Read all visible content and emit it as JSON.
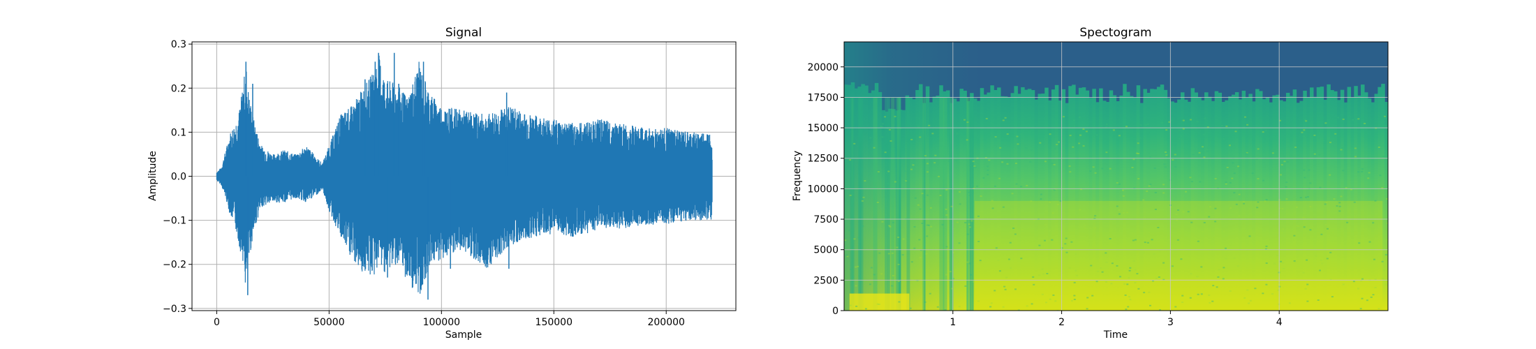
{
  "chart_data": [
    {
      "type": "line",
      "title": "Signal",
      "xlabel": "Sample",
      "ylabel": "Amplitude",
      "xlim": [
        -11000,
        231000
      ],
      "ylim": [
        -0.305,
        0.305
      ],
      "xticks": [
        0,
        50000,
        100000,
        150000,
        200000
      ],
      "xtick_labels": [
        "0",
        "50000",
        "100000",
        "150000",
        "200000"
      ],
      "yticks": [
        -0.3,
        -0.2,
        -0.1,
        0.0,
        0.1,
        0.2,
        0.3
      ],
      "ytick_labels": [
        "−0.3",
        "−0.2",
        "−0.1",
        "0.0",
        "0.1",
        "0.2",
        "0.3"
      ],
      "grid": true,
      "color": "#1f77b4",
      "num_samples": 220500,
      "envelope": {
        "x": [
          0,
          2000,
          4000,
          6000,
          8000,
          10000,
          12000,
          13000,
          14000,
          16000,
          18000,
          20000,
          25000,
          30000,
          35000,
          40000,
          45000,
          47000,
          50000,
          55000,
          60000,
          65000,
          70000,
          72000,
          75000,
          80000,
          85000,
          90000,
          95000,
          100000,
          110000,
          120000,
          130000,
          140000,
          150000,
          160000,
          170000,
          180000,
          190000,
          200000,
          210000,
          220000
        ],
        "upper": [
          0.01,
          0.02,
          0.06,
          0.1,
          0.12,
          0.15,
          0.22,
          0.26,
          0.2,
          0.14,
          0.1,
          0.07,
          0.05,
          0.06,
          0.05,
          0.07,
          0.04,
          0.03,
          0.07,
          0.14,
          0.16,
          0.2,
          0.24,
          0.28,
          0.22,
          0.21,
          0.18,
          0.26,
          0.19,
          0.16,
          0.15,
          0.14,
          0.16,
          0.14,
          0.13,
          0.12,
          0.13,
          0.12,
          0.11,
          0.11,
          0.1,
          0.1
        ],
        "lower": [
          -0.01,
          -0.02,
          -0.05,
          -0.09,
          -0.11,
          -0.16,
          -0.2,
          -0.27,
          -0.21,
          -0.14,
          -0.1,
          -0.07,
          -0.06,
          -0.06,
          -0.05,
          -0.06,
          -0.04,
          -0.03,
          -0.08,
          -0.14,
          -0.19,
          -0.22,
          -0.23,
          -0.2,
          -0.22,
          -0.2,
          -0.24,
          -0.28,
          -0.2,
          -0.19,
          -0.17,
          -0.21,
          -0.16,
          -0.14,
          -0.13,
          -0.14,
          -0.12,
          -0.12,
          -0.11,
          -0.11,
          -0.1,
          -0.1
        ]
      },
      "peaks": [
        {
          "x": 13000,
          "y": 0.26
        },
        {
          "x": 13800,
          "y": -0.27
        },
        {
          "x": 16000,
          "y": 0.21
        },
        {
          "x": 66000,
          "y": 0.22
        },
        {
          "x": 70500,
          "y": 0.26
        },
        {
          "x": 72000,
          "y": 0.28
        },
        {
          "x": 79000,
          "y": 0.28
        },
        {
          "x": 81000,
          "y": 0.21
        },
        {
          "x": 92000,
          "y": 0.26
        },
        {
          "x": 94000,
          "y": -0.28
        },
        {
          "x": 76000,
          "y": -0.23
        },
        {
          "x": 104000,
          "y": -0.21
        },
        {
          "x": 130000,
          "y": -0.21
        },
        {
          "x": 129000,
          "y": 0.19
        }
      ]
    },
    {
      "type": "heatmap",
      "title": "Spectogram",
      "xlabel": "Time",
      "ylabel": "Frequency",
      "xlim": [
        0,
        5.0
      ],
      "ylim": [
        0,
        22050
      ],
      "xticks": [
        1,
        2,
        3,
        4
      ],
      "xtick_labels": [
        "1",
        "2",
        "3",
        "4"
      ],
      "yticks": [
        0,
        2500,
        5000,
        7500,
        10000,
        12500,
        15000,
        17500,
        20000
      ],
      "ytick_labels": [
        "0",
        "2500",
        "5000",
        "7500",
        "10000",
        "12500",
        "15000",
        "17500",
        "20000"
      ],
      "grid": true,
      "colormap": [
        "#440154",
        "#3b528b",
        "#21918c",
        "#5ec962",
        "#fde725"
      ],
      "background_color": "#2b5f8a",
      "cutoff_frequency": 17500,
      "description_values": "intensity highest at low frequencies (0-2500) and between 1.2-4.9s; bright band near 0-0.5s below 1500 Hz"
    }
  ]
}
